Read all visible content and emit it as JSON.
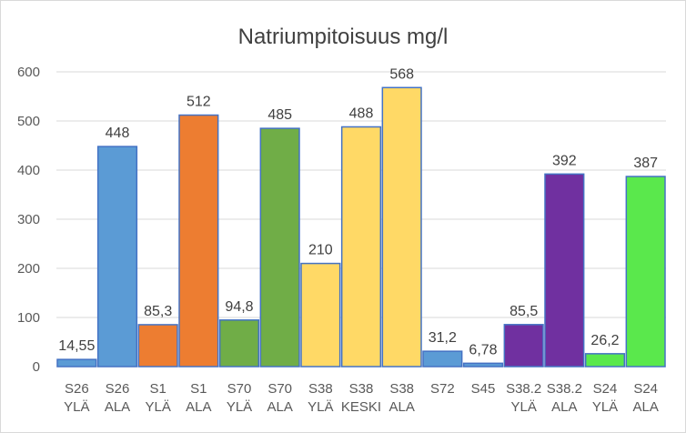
{
  "chart_data": {
    "type": "bar",
    "title": "Natriumpitoisuus mg/l",
    "xlabel": "",
    "ylabel": "",
    "ylim": [
      0,
      600
    ],
    "yticks": [
      0,
      100,
      200,
      300,
      400,
      500,
      600
    ],
    "grid": true,
    "legend": "none",
    "categories": [
      [
        "S26",
        "YLÄ"
      ],
      [
        "S26",
        "ALA"
      ],
      [
        "S1",
        "YLÄ"
      ],
      [
        "S1",
        "ALA"
      ],
      [
        "S70",
        "YLÄ"
      ],
      [
        "S70",
        "ALA"
      ],
      [
        "S38",
        "YLÄ"
      ],
      [
        "S38",
        "KESKI"
      ],
      [
        "S38",
        "ALA"
      ],
      [
        "S72"
      ],
      [
        "S45"
      ],
      [
        "S38.2",
        "YLÄ"
      ],
      [
        "S38.2",
        "ALA"
      ],
      [
        "S24",
        "YLÄ"
      ],
      [
        "S24",
        "ALA"
      ]
    ],
    "values": [
      14.55,
      448,
      85.3,
      512,
      94.8,
      485,
      210,
      488,
      568,
      31.2,
      6.78,
      85.5,
      392,
      26.2,
      387
    ],
    "data_labels": [
      "14,55",
      "448",
      "85,3",
      "512",
      "94,8",
      "485",
      "210",
      "488",
      "568",
      "31,2",
      "6,78",
      "85,5",
      "392",
      "26,2",
      "387"
    ],
    "colors": [
      "#5b9bd5",
      "#5b9bd5",
      "#ed7d31",
      "#ed7d31",
      "#70ad47",
      "#70ad47",
      "#ffd966",
      "#ffd966",
      "#ffd966",
      "#5b9bd5",
      "#5b9bd5",
      "#7030a0",
      "#7030a0",
      "#5ae84c",
      "#5ae84c"
    ],
    "outline_color": "#4472c4"
  }
}
